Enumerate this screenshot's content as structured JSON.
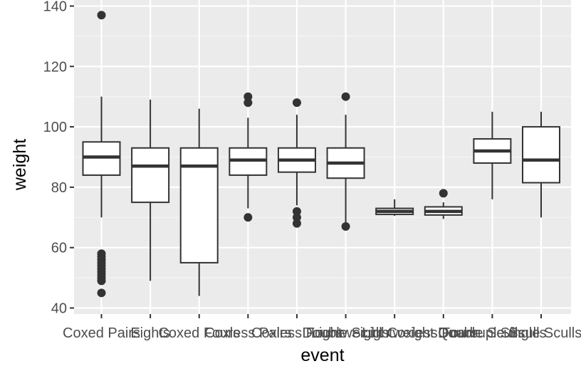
{
  "chart_data": {
    "type": "boxplot",
    "xlabel": "event",
    "ylabel": "weight",
    "ylim": [
      38,
      142
    ],
    "yticks": [
      40,
      60,
      80,
      100,
      120,
      140
    ],
    "grid": true,
    "legend": "none",
    "colors": {
      "panel_background": "#ebebeb",
      "grid_major": "#ffffff",
      "grid_minor": "#f5f5f5",
      "box_fill": "#ffffff",
      "box_stroke": "#333333",
      "outlier": "#333333",
      "tick_text": "#4d4d4d"
    },
    "categories": [
      "Coxed Pairs",
      "Eights",
      "Coxed Fours",
      "Coxless Pairs",
      "Coxless Fours",
      "Double Sculls",
      "Lightweight Coxless Fours",
      "Lightweight Double Sculls",
      "Quadruple Sculls",
      "Single Sculls"
    ],
    "boxes": [
      {
        "min": 70,
        "q1": 84,
        "median": 90,
        "q3": 95,
        "max": 110,
        "outliers": [
          137,
          58,
          57,
          56,
          55,
          54,
          53,
          52,
          51,
          50,
          49,
          45
        ]
      },
      {
        "min": 49,
        "q1": 75,
        "median": 87,
        "q3": 93,
        "max": 109,
        "outliers": []
      },
      {
        "min": 44,
        "q1": 55,
        "median": 87,
        "q3": 93,
        "max": 106,
        "outliers": []
      },
      {
        "min": 73,
        "q1": 84,
        "median": 89,
        "q3": 93,
        "max": 103,
        "outliers": [
          110,
          108,
          70
        ]
      },
      {
        "min": 74,
        "q1": 85,
        "median": 89,
        "q3": 93,
        "max": 104,
        "outliers": [
          108,
          72,
          70,
          68
        ]
      },
      {
        "min": 68,
        "q1": 83,
        "median": 88,
        "q3": 93,
        "max": 104,
        "outliers": [
          110,
          67
        ]
      },
      {
        "min": 70.5,
        "q1": 71,
        "median": 72,
        "q3": 73,
        "max": 76,
        "outliers": []
      },
      {
        "min": 69.5,
        "q1": 70.8,
        "median": 72,
        "q3": 73.5,
        "max": 75,
        "outliers": [
          78
        ]
      },
      {
        "min": 76,
        "q1": 88,
        "median": 92,
        "q3": 96,
        "max": 105,
        "outliers": []
      },
      {
        "min": 70,
        "q1": 81.5,
        "median": 89,
        "q3": 100,
        "max": 105,
        "outliers": []
      }
    ]
  }
}
